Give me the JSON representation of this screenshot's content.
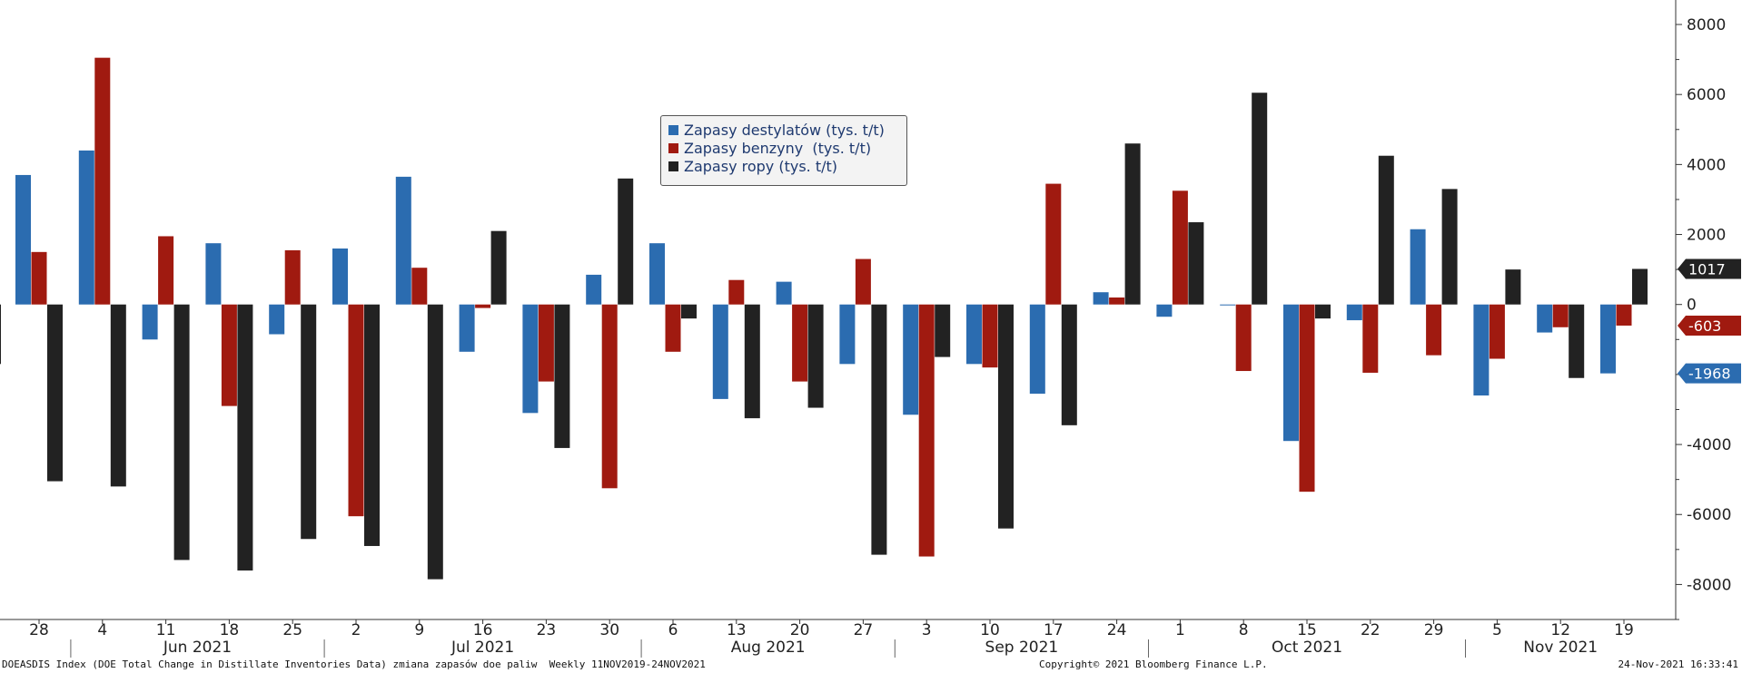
{
  "chart_data": {
    "type": "bar",
    "categories": [
      "28",
      "4",
      "11",
      "18",
      "25",
      "2",
      "9",
      "16",
      "23",
      "30",
      "6",
      "13",
      "20",
      "27",
      "3",
      "10",
      "17",
      "24",
      "1",
      "8",
      "15",
      "22",
      "29",
      "5",
      "12",
      "19"
    ],
    "months": [
      {
        "label": "Jun 2021",
        "start": 1,
        "end": 4
      },
      {
        "label": "Jul 2021",
        "start": 5,
        "end": 9
      },
      {
        "label": "Aug 2021",
        "start": 10,
        "end": 13
      },
      {
        "label": "Sep 2021",
        "start": 14,
        "end": 17
      },
      {
        "label": "Oct 2021",
        "start": 18,
        "end": 22
      },
      {
        "label": "Nov 2021",
        "start": 23,
        "end": 25
      }
    ],
    "series": [
      {
        "name": "Zapasy destylatów (tys. t/t)",
        "color": "#2b6cb0",
        "values": [
          3700,
          4400,
          -1000,
          1750,
          -850,
          1600,
          3650,
          -1350,
          -3100,
          850,
          1750,
          -2700,
          650,
          -1700,
          -3150,
          -1700,
          -2550,
          350,
          -350,
          0,
          -3900,
          -450,
          2150,
          -2600,
          -800,
          -1968
        ]
      },
      {
        "name": "Zapasy benzyny  (tys. t/t)",
        "color": "#a01a10",
        "values": [
          1500,
          7050,
          1950,
          -2900,
          1550,
          -6050,
          1050,
          -100,
          -2200,
          -5250,
          -1350,
          700,
          -2200,
          1300,
          -7200,
          -1800,
          3450,
          200,
          3250,
          -1900,
          -5350,
          -1950,
          -1450,
          -1550,
          -650,
          -603
        ]
      },
      {
        "name": "Zapasy ropy (tys. t/t)",
        "color": "#222222",
        "values": [
          -5050,
          -5200,
          -7300,
          -7600,
          -6700,
          -6900,
          -7850,
          2100,
          -4100,
          3600,
          -400,
          -3250,
          -2950,
          -7150,
          -1500,
          -6400,
          -3450,
          4600,
          2350,
          6050,
          -400,
          4250,
          3300,
          1000,
          -2100,
          1017
        ]
      }
    ],
    "yaxis": {
      "position": "right",
      "min": -9000,
      "max": 8700,
      "ticks": [
        8000,
        6000,
        4000,
        2000,
        0,
        -4000,
        -6000,
        -8000
      ],
      "tick_labels": [
        "8000",
        "6000",
        "4000",
        "2000",
        "0",
        "-4000",
        "-6000",
        "-8000"
      ]
    },
    "last_value_badges": [
      {
        "value": 1017,
        "label": "1017",
        "color": "#222222"
      },
      {
        "value": -603,
        "label": "-603",
        "color": "#a01a10"
      },
      {
        "value": -1968,
        "label": "-1968",
        "color": "#2b6cb0"
      }
    ],
    "partial_left_value": -1700,
    "legend_position": "top-center",
    "grid": false
  },
  "footer": {
    "left": "DOEASDIS Index (DOE Total Change in Distillate Inventories Data) zmiana zapasów doe paliw  Weekly 11NOV2019-24NOV2021",
    "center": "Copyright© 2021 Bloomberg Finance L.P.",
    "right": "24-Nov-2021 16:33:41"
  }
}
